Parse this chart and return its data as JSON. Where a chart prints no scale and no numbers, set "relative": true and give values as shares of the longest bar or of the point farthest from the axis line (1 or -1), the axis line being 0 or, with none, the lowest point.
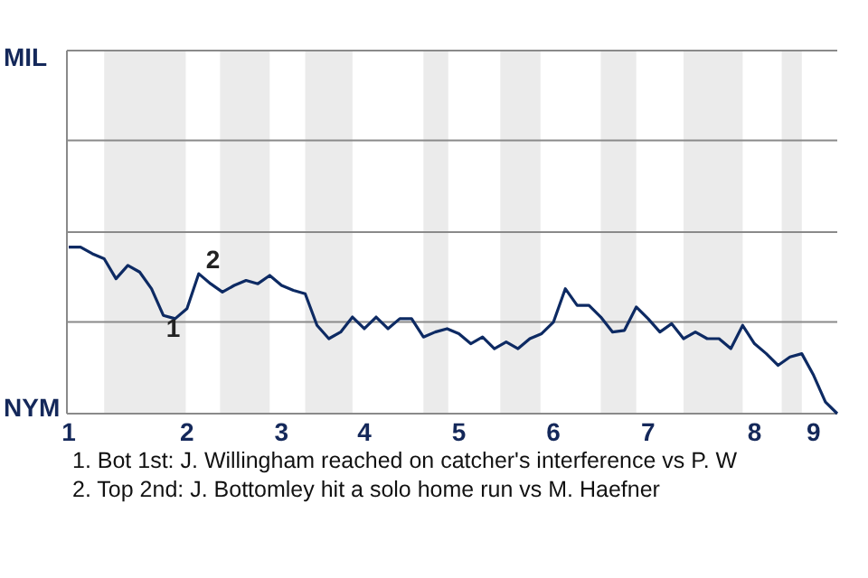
{
  "chart_data": {
    "type": "line",
    "relative": true,
    "categories": [
      "1",
      null,
      null,
      null,
      null,
      null,
      null,
      null,
      null,
      null,
      "2",
      null,
      null,
      null,
      null,
      null,
      null,
      null,
      "3",
      null,
      null,
      null,
      null,
      null,
      null,
      "4",
      null,
      null,
      null,
      null,
      null,
      null,
      null,
      "5",
      null,
      null,
      null,
      null,
      null,
      null,
      null,
      "6",
      null,
      null,
      null,
      null,
      null,
      null,
      null,
      "7",
      null,
      null,
      null,
      null,
      null,
      null,
      null,
      null,
      "8",
      null,
      null,
      null,
      null,
      "9",
      null,
      null
    ],
    "series": [
      {
        "color": "#0d2a63",
        "values": [
          1,
          1,
          0.96,
          0.93,
          0.81,
          0.89,
          0.85,
          0.75,
          0.59,
          0.57,
          0.63,
          0.84,
          0.78,
          0.73,
          0.77,
          0.8,
          0.78,
          0.83,
          0.77,
          0.74,
          0.72,
          0.53,
          0.45,
          0.49,
          0.58,
          0.51,
          0.58,
          0.51,
          0.57,
          0.57,
          0.46,
          0.49,
          0.51,
          0.48,
          0.42,
          0.46,
          0.39,
          0.43,
          0.39,
          0.45,
          0.48,
          0.55,
          0.75,
          0.65,
          0.65,
          0.58,
          0.49,
          0.5,
          0.64,
          0.57,
          0.49,
          0.54,
          0.45,
          0.49,
          0.45,
          0.45,
          0.39,
          0.53,
          0.42,
          0.36,
          0.29,
          0.34,
          0.36,
          0.23,
          0.07,
          0
        ]
      }
    ],
    "line_style": "solid",
    "marker": "none",
    "ref_lines": [
      {
        "axis": "y",
        "value": 0.55,
        "color": "#8a8a8a"
      },
      {
        "axis": "y",
        "value": 1.09,
        "color": "#8a8a8a"
      },
      {
        "axis": "y",
        "value": 1.64,
        "color": "#8a8a8a"
      },
      {
        "axis": "y",
        "value": 2.18,
        "color": "#8a8a8a"
      }
    ],
    "annotations": [
      "MIL",
      "NYM",
      {
        "text": "1",
        "y": 0.57
      },
      {
        "text": "2",
        "y": 0.84
      },
      "1. Bot 1st: J. Willingham reached on catcher's interference vs P. W",
      "2. Top 2nd: J. Bottomley hit a solo home run vs M. Haefner"
    ]
  }
}
